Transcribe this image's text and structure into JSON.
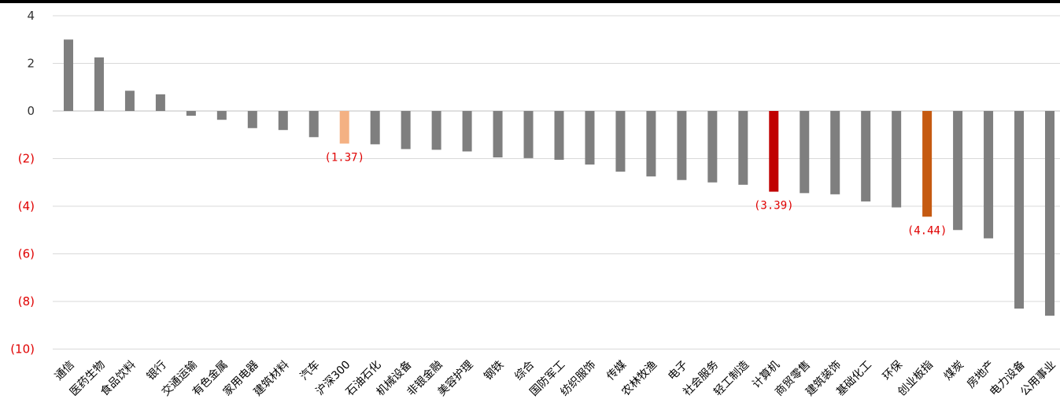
{
  "chart_data": {
    "type": "bar",
    "title": "",
    "xlabel": "",
    "ylabel": "",
    "ylim": [
      -10,
      4
    ],
    "grid": true,
    "legend": "none",
    "yticks": [
      {
        "value": 4,
        "label": "4",
        "color": "#333333"
      },
      {
        "value": 2,
        "label": "2",
        "color": "#333333"
      },
      {
        "value": 0,
        "label": "0",
        "color": "#333333"
      },
      {
        "value": -2,
        "label": "(2)",
        "color": "#e00000"
      },
      {
        "value": -4,
        "label": "(4)",
        "color": "#e00000"
      },
      {
        "value": -6,
        "label": "(6)",
        "color": "#e00000"
      },
      {
        "value": -8,
        "label": "(8)",
        "color": "#e00000"
      },
      {
        "value": -10,
        "label": "(10)",
        "color": "#e00000"
      }
    ],
    "categories": [
      "通信",
      "医药生物",
      "食品饮料",
      "银行",
      "交通运输",
      "有色金属",
      "家用电器",
      "建筑材料",
      "汽车",
      "沪深300",
      "石油石化",
      "机械设备",
      "非银金融",
      "美容护理",
      "钢铁",
      "综合",
      "国防军工",
      "纺织服饰",
      "传媒",
      "农林牧渔",
      "电子",
      "社会服务",
      "轻工制造",
      "计算机",
      "商贸零售",
      "建筑装饰",
      "基础化工",
      "环保",
      "创业板指",
      "煤炭",
      "房地产",
      "电力设备",
      "公用事业"
    ],
    "values": [
      3.0,
      2.25,
      0.85,
      0.7,
      -0.2,
      -0.37,
      -0.72,
      -0.8,
      -1.1,
      -1.37,
      -1.4,
      -1.6,
      -1.63,
      -1.7,
      -1.95,
      -1.98,
      -2.05,
      -2.25,
      -2.55,
      -2.75,
      -2.9,
      -3.0,
      -3.1,
      -3.39,
      -3.45,
      -3.5,
      -3.8,
      -4.05,
      -4.44,
      -5.0,
      -5.35,
      -8.3,
      -8.6
    ],
    "colors": {
      "default": "#7f7f7f",
      "沪深300": "#f4b183",
      "计算机": "#c00000",
      "创业板指": "#c55a11",
      "gridline": "#d9d9d9",
      "axis": "#bfbfbf"
    },
    "data_labels": [
      {
        "category": "沪深300",
        "text": "(1.37)"
      },
      {
        "category": "计算机",
        "text": "(3.39)"
      },
      {
        "category": "创业板指",
        "text": "(4.44)"
      }
    ]
  }
}
